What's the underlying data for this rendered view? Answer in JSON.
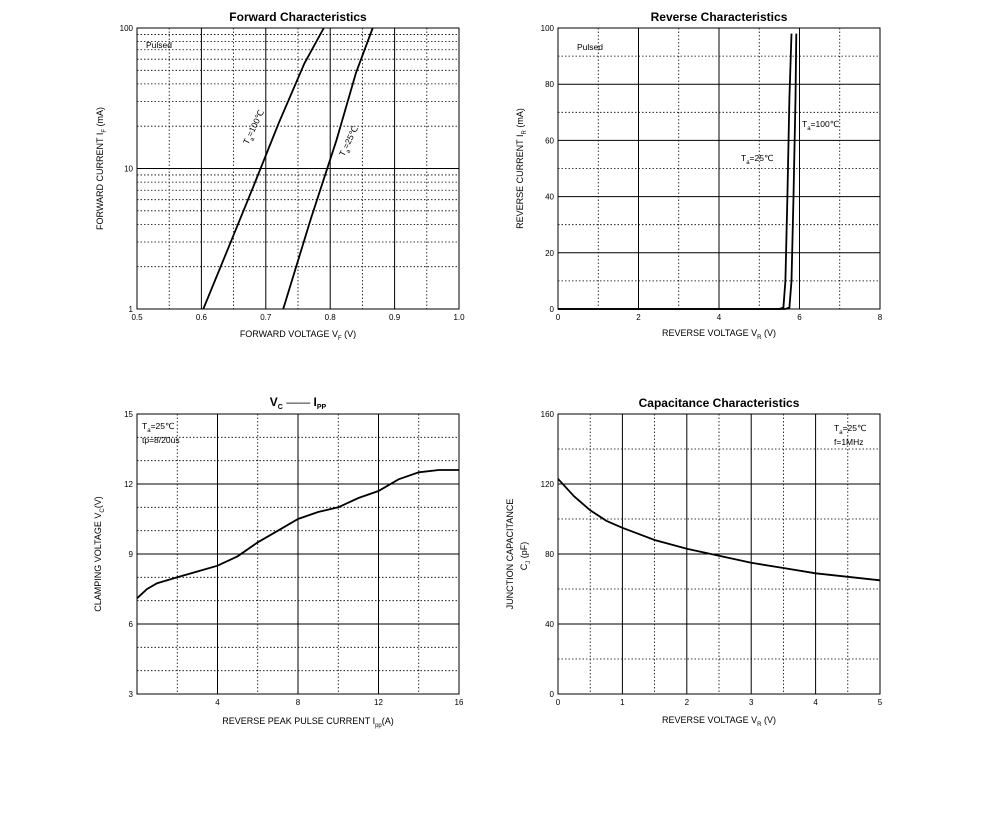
{
  "chart_data": [
    {
      "id": "forward",
      "type": "line",
      "title": "Forward   Characteristics",
      "xlabel": "FORWARD VOLTAGE   V",
      "xlabel_sub": "F",
      "xlabel_unit": "(V)",
      "ylabel": "FORWARD CURRENT   I",
      "ylabel_sub": "F",
      "ylabel_unit": "(mA)",
      "xlim": [
        0.5,
        1.0
      ],
      "ylim": [
        1,
        100
      ],
      "yscale": "log",
      "grid": true,
      "xticks": [
        0.5,
        0.6,
        0.7,
        0.8,
        0.9,
        1.0
      ],
      "xtick_labels": [
        "0.5",
        "0.6",
        "0.7",
        "0.8",
        "0.9",
        "1.0"
      ],
      "yticks": [
        1,
        10,
        100
      ],
      "ytick_labels": [
        "1",
        "10",
        "100"
      ],
      "annotations": [
        "Pulsed"
      ],
      "series": [
        {
          "name": "T",
          "sub": "a",
          "suffix": "=100℃",
          "x": [
            0.603,
            0.64,
            0.68,
            0.72,
            0.76,
            0.79
          ],
          "y": [
            1,
            2.6,
            7.3,
            21,
            56,
            100
          ]
        },
        {
          "name": "T",
          "sub": "a",
          "suffix": "=25℃",
          "x": [
            0.727,
            0.77,
            0.81,
            0.84,
            0.866
          ],
          "y": [
            1,
            4.4,
            16,
            48,
            100
          ]
        }
      ]
    },
    {
      "id": "reverse",
      "type": "line",
      "title": "Reverse   Characteristics",
      "xlabel": "REVERSE VOLTAGE   V",
      "xlabel_sub": "R",
      "xlabel_unit": "(V)",
      "ylabel": "REVERSE CURRENT   I",
      "ylabel_sub": "R",
      "ylabel_unit": "(mA)",
      "xlim": [
        0,
        8
      ],
      "ylim": [
        0,
        100
      ],
      "grid": true,
      "xticks": [
        0,
        2,
        4,
        6,
        8
      ],
      "xtick_labels": [
        "0",
        "2",
        "4",
        "6",
        "8"
      ],
      "yticks": [
        0,
        20,
        40,
        60,
        80,
        100
      ],
      "ytick_labels": [
        "0",
        "20",
        "40",
        "60",
        "80",
        "100"
      ],
      "annotations": [
        "Pulsed"
      ],
      "series": [
        {
          "name": "T",
          "sub": "a",
          "suffix": "=25℃",
          "x": [
            0,
            5.5,
            5.6,
            5.65,
            5.7,
            5.75,
            5.8
          ],
          "y": [
            0,
            0,
            0.5,
            10,
            40,
            75,
            98
          ]
        },
        {
          "name": "T",
          "sub": "a",
          "suffix": "=100℃",
          "x": [
            0,
            5.65,
            5.75,
            5.8,
            5.85,
            5.9,
            5.92
          ],
          "y": [
            0,
            0,
            0.5,
            10,
            40,
            75,
            98
          ]
        }
      ]
    },
    {
      "id": "clamp",
      "type": "line",
      "title": "V",
      "title_sub": "C",
      "title_mid": "——",
      "title2": "I",
      "title2_sub": "PP",
      "xlabel": "REVERSE PEAK PULSE CURRENT   I",
      "xlabel_sub": "pp",
      "xlabel_unit": "(A)",
      "ylabel": "CLAMPING VOLTAGE  V",
      "ylabel_sub": "C",
      "ylabel_unit": "(V)",
      "xlim": [
        0,
        16
      ],
      "ylim": [
        3,
        15
      ],
      "grid": true,
      "xticks": [
        4,
        8,
        12,
        16
      ],
      "xtick_labels": [
        "4",
        "8",
        "12",
        "16"
      ],
      "yticks": [
        3,
        6,
        9,
        12,
        15
      ],
      "ytick_labels": [
        "3",
        "6",
        "9",
        "12",
        "15"
      ],
      "annotations": [
        "T",
        "a",
        "=25℃",
        "tp=8/20us"
      ],
      "series": [
        {
          "x": [
            0,
            0.5,
            1,
            2,
            3,
            4,
            5,
            6,
            7,
            8,
            9,
            10,
            11,
            12,
            13,
            14,
            15,
            16
          ],
          "y": [
            7.1,
            7.5,
            7.75,
            8.0,
            8.25,
            8.5,
            8.9,
            9.5,
            10.0,
            10.5,
            10.8,
            11.0,
            11.4,
            11.7,
            12.2,
            12.5,
            12.6,
            12.6
          ]
        }
      ]
    },
    {
      "id": "cap",
      "type": "line",
      "title": "Capacitance Characteristics",
      "xlabel": "REVERSE VOLTAGE   V",
      "xlabel_sub": "R",
      "xlabel_unit": "(V)",
      "ylabel": "JUNCTION CAPACITANCE",
      "ylabel2": "C",
      "ylabel2_sub": "J",
      "ylabel2_unit": "(pF)",
      "xlim": [
        0,
        5
      ],
      "ylim": [
        0,
        160
      ],
      "grid": true,
      "xticks": [
        0,
        1,
        2,
        3,
        4,
        5
      ],
      "xtick_labels": [
        "0",
        "1",
        "2",
        "3",
        "4",
        "5"
      ],
      "yticks": [
        0,
        40,
        80,
        120,
        160
      ],
      "ytick_labels": [
        "0",
        "40",
        "80",
        "120",
        "160"
      ],
      "annotations": [
        "T",
        "a",
        "=25℃",
        "f=1MHz"
      ],
      "series": [
        {
          "x": [
            0,
            0.25,
            0.5,
            0.75,
            1.0,
            1.5,
            2.0,
            2.5,
            3.0,
            3.5,
            4.0,
            4.5,
            5.0
          ],
          "y": [
            123,
            113,
            105,
            99,
            95,
            88,
            83,
            79,
            75,
            72,
            69,
            67,
            65
          ]
        }
      ]
    }
  ]
}
